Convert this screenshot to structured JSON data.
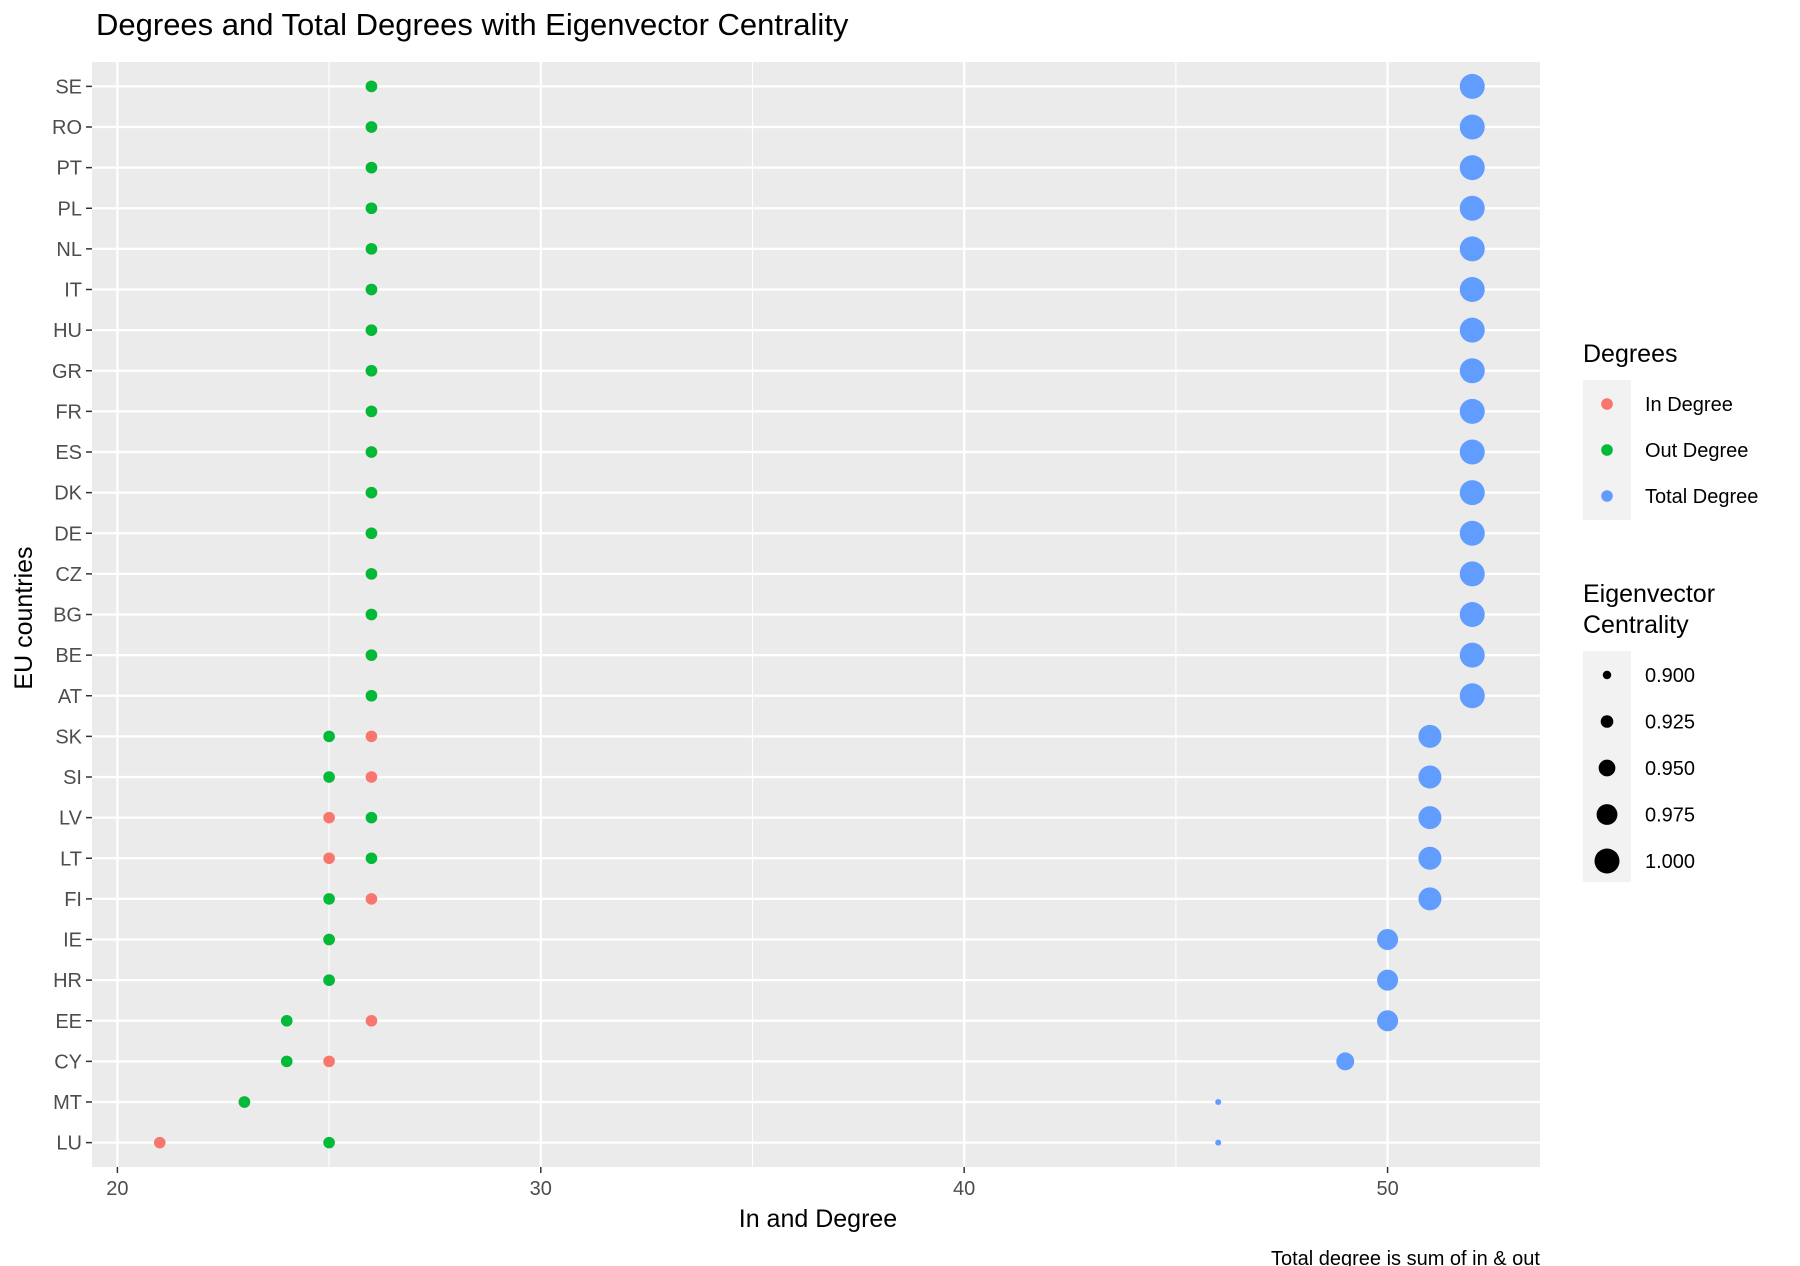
{
  "chart_data": {
    "type": "scatter",
    "title": "Degrees and Total Degrees with Eigenvector Centrality",
    "xlabel": "In and Degree",
    "ylabel": "EU countries",
    "caption": "Total degree is sum of in & out",
    "xlim": [
      19.4,
      53.6
    ],
    "x_ticks": [
      20,
      30,
      40,
      50
    ],
    "grid": true,
    "categories": [
      "LU",
      "MT",
      "CY",
      "EE",
      "HR",
      "IE",
      "FI",
      "LT",
      "LV",
      "SI",
      "SK",
      "AT",
      "BE",
      "BG",
      "CZ",
      "DE",
      "DK",
      "ES",
      "FR",
      "GR",
      "HU",
      "IT",
      "NL",
      "PL",
      "PT",
      "RO",
      "SE"
    ],
    "series": [
      {
        "name": "In Degree",
        "color": "#F8766D",
        "values": [
          21,
          23,
          25,
          26,
          25,
          25,
          26,
          25,
          25,
          26,
          26,
          26,
          26,
          26,
          26,
          26,
          26,
          26,
          26,
          26,
          26,
          26,
          26,
          26,
          26,
          26,
          26
        ]
      },
      {
        "name": "Out Degree",
        "color": "#00BA38",
        "values": [
          25,
          23,
          24,
          24,
          25,
          25,
          25,
          26,
          26,
          25,
          25,
          26,
          26,
          26,
          26,
          26,
          26,
          26,
          26,
          26,
          26,
          26,
          26,
          26,
          26,
          26,
          26
        ]
      },
      {
        "name": "Total Degree",
        "color": "#619CFF",
        "values": [
          46,
          46,
          49,
          50,
          50,
          50,
          51,
          51,
          51,
          51,
          51,
          52,
          52,
          52,
          52,
          52,
          52,
          52,
          52,
          52,
          52,
          52,
          52,
          52,
          52,
          52,
          52
        ],
        "eigenvector_centrality": [
          0.885,
          0.885,
          0.957,
          0.976,
          0.976,
          0.976,
          0.988,
          0.988,
          0.988,
          0.988,
          0.988,
          1.0,
          1.0,
          1.0,
          1.0,
          1.0,
          1.0,
          1.0,
          1.0,
          1.0,
          1.0,
          1.0,
          1.0,
          1.0,
          1.0,
          1.0,
          1.0
        ]
      }
    ],
    "legend": {
      "placement": "right",
      "color_title": "Degrees",
      "size_title_lines": [
        "Eigenvector",
        "Centrality"
      ],
      "size_values": [
        "0.900",
        "0.925",
        "0.950",
        "0.975",
        "1.000"
      ],
      "size_levels": [
        0.9,
        0.925,
        0.95,
        0.975,
        1.0
      ]
    }
  }
}
